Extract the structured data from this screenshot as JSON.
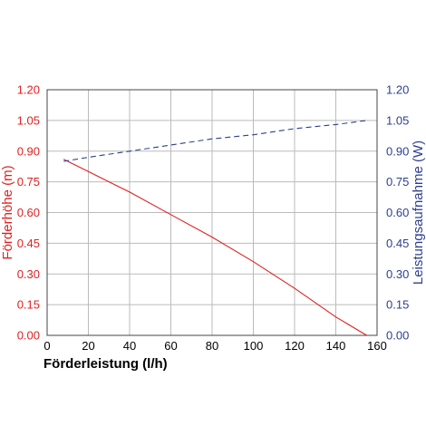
{
  "chart_data": {
    "type": "line",
    "xlabel": "Förderleistung (l/h)",
    "ylabel": "Förderhöhe (m)",
    "y2label": "Leistungsaufnahme (W)",
    "xlim": [
      0,
      160
    ],
    "ylim": [
      0,
      1.2
    ],
    "y2lim": [
      0,
      1.2
    ],
    "x_ticks": [
      0,
      20,
      40,
      60,
      80,
      100,
      120,
      140,
      160
    ],
    "y_ticks": [
      "0.00",
      "0.15",
      "0.30",
      "0.45",
      "0.60",
      "0.75",
      "0.90",
      "1.05",
      "1.20"
    ],
    "y2_ticks": [
      "0.00",
      "0.15",
      "0.30",
      "0.45",
      "0.60",
      "0.75",
      "0.90",
      "1.05",
      "1.20"
    ],
    "grid": true,
    "series": [
      {
        "axis": "left",
        "style": "solid",
        "color": "#e02020",
        "x": [
          8,
          20,
          40,
          60,
          80,
          100,
          120,
          140,
          155
        ],
        "y": [
          0.86,
          0.8,
          0.7,
          0.59,
          0.48,
          0.36,
          0.23,
          0.09,
          0.0
        ]
      },
      {
        "axis": "right",
        "style": "dashed",
        "color": "#2d3f8f",
        "x": [
          8,
          20,
          40,
          60,
          80,
          100,
          120,
          140,
          155
        ],
        "y": [
          0.85,
          0.87,
          0.9,
          0.93,
          0.96,
          0.98,
          1.01,
          1.03,
          1.05
        ]
      }
    ]
  }
}
